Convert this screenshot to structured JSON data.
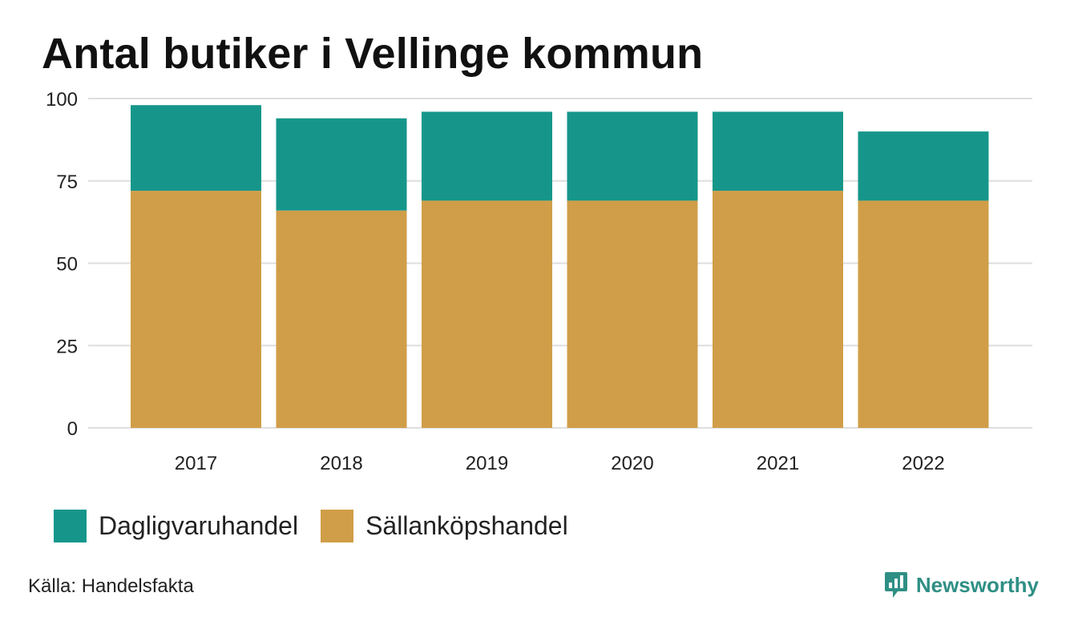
{
  "title": "Antal butiker i Vellinge kommun",
  "source": "Källa: Handelsfakta",
  "brand": {
    "name": "Newsworthy",
    "icon": "newsworthy-logo-icon",
    "color": "#2f8f84"
  },
  "chart_data": {
    "type": "bar",
    "stacked": true,
    "title": "Antal butiker i Vellinge kommun",
    "xlabel": "",
    "ylabel": "",
    "categories": [
      "2017",
      "2018",
      "2019",
      "2020",
      "2021",
      "2022"
    ],
    "series": [
      {
        "name": "Sällanköpshandel",
        "values": [
          72,
          66,
          69,
          69,
          72,
          69
        ],
        "color": "#d09e48"
      },
      {
        "name": "Dagligvaruhandel",
        "values": [
          26,
          28,
          27,
          27,
          24,
          21
        ],
        "color": "#16968a"
      }
    ],
    "ylim": [
      0,
      100
    ],
    "yticks": [
      "0",
      "25",
      "50",
      "75",
      "100"
    ],
    "grid": true,
    "legend_position": "bottom-left"
  },
  "legend": [
    {
      "label": "Dagligvaruhandel",
      "color": "#16968a"
    },
    {
      "label": "Sällanköpshandel",
      "color": "#d09e48"
    }
  ]
}
